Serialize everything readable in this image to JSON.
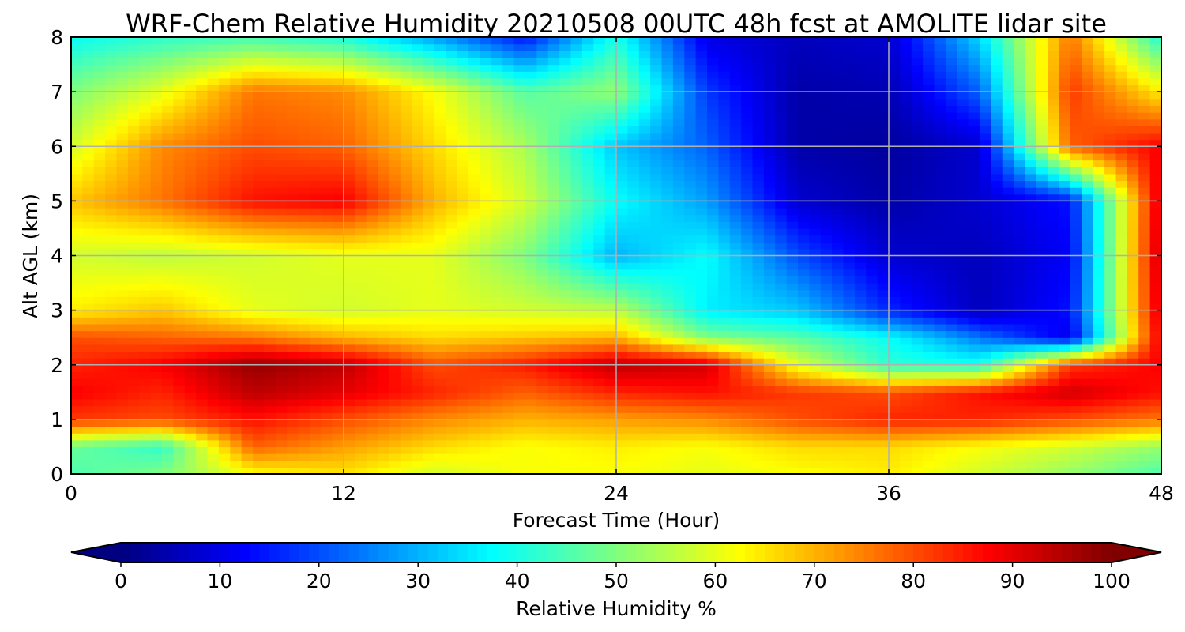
{
  "chart_data": {
    "type": "heatmap",
    "title": "WRF-Chem Relative Humidity 20210508 00UTC 48h fcst at AMOLITE lidar site",
    "xlabel": "Forecast Time (Hour)",
    "ylabel": "Alt AGL (km)",
    "xlim": [
      0,
      48
    ],
    "ylim": [
      0,
      8
    ],
    "xticks": [
      0,
      12,
      24,
      36,
      48
    ],
    "yticks": [
      0,
      1,
      2,
      3,
      4,
      5,
      6,
      7,
      8
    ],
    "grid": true,
    "colorbar": {
      "label": "Relative Humidity %",
      "range": [
        0,
        100
      ],
      "ticks": [
        0,
        10,
        20,
        30,
        40,
        50,
        60,
        70,
        80,
        90,
        100
      ],
      "colormap": "jet",
      "extend": "both",
      "orientation": "horizontal"
    },
    "x": [
      0,
      4,
      8,
      12,
      16,
      20,
      24,
      28,
      32,
      36,
      40,
      44,
      48
    ],
    "y": [
      0,
      0.5,
      1,
      1.5,
      2,
      2.5,
      3,
      4,
      5,
      6,
      7,
      8
    ],
    "z": [
      [
        45,
        50,
        62,
        65,
        58,
        62,
        62,
        60,
        62,
        64,
        58,
        52,
        45
      ],
      [
        48,
        42,
        78,
        72,
        66,
        62,
        64,
        62,
        66,
        66,
        62,
        58,
        52
      ],
      [
        82,
        80,
        86,
        80,
        74,
        70,
        72,
        74,
        80,
        84,
        84,
        80,
        76
      ],
      [
        88,
        84,
        94,
        90,
        84,
        78,
        84,
        86,
        82,
        80,
        86,
        92,
        86
      ],
      [
        84,
        88,
        98,
        94,
        80,
        85,
        94,
        92,
        60,
        42,
        40,
        82,
        88
      ],
      [
        80,
        78,
        76,
        70,
        66,
        68,
        70,
        50,
        46,
        38,
        24,
        10,
        90
      ],
      [
        64,
        68,
        60,
        58,
        60,
        58,
        56,
        36,
        32,
        16,
        6,
        14,
        92
      ],
      [
        58,
        56,
        58,
        60,
        60,
        50,
        30,
        38,
        20,
        8,
        6,
        12,
        94
      ],
      [
        68,
        76,
        86,
        88,
        70,
        58,
        38,
        28,
        8,
        4,
        8,
        14,
        92
      ],
      [
        58,
        74,
        80,
        78,
        66,
        54,
        32,
        22,
        4,
        3,
        8,
        78,
        88
      ],
      [
        50,
        60,
        76,
        74,
        62,
        46,
        52,
        18,
        4,
        5,
        22,
        82,
        64
      ],
      [
        38,
        42,
        44,
        40,
        28,
        14,
        40,
        10,
        6,
        8,
        34,
        76,
        40
      ]
    ]
  }
}
